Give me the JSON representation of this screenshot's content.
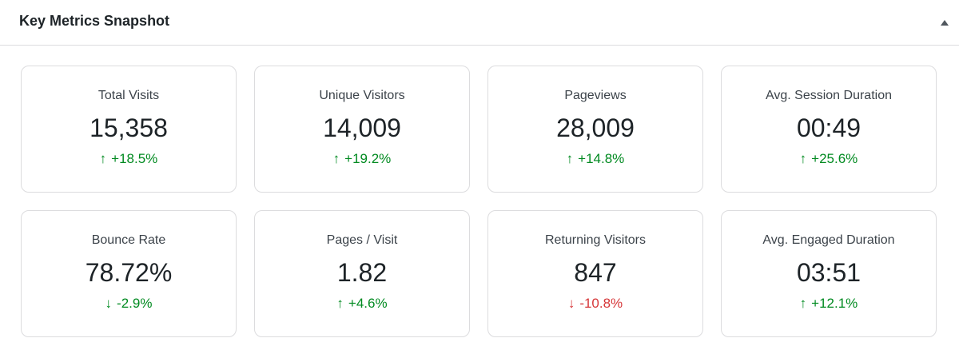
{
  "header": {
    "title": "Key Metrics Snapshot"
  },
  "metrics": [
    {
      "label": "Total Visits",
      "value": "15,358",
      "arrow": "↑",
      "change": "+18.5%",
      "color": "#008a20"
    },
    {
      "label": "Unique Visitors",
      "value": "14,009",
      "arrow": "↑",
      "change": "+19.2%",
      "color": "#008a20"
    },
    {
      "label": "Pageviews",
      "value": "28,009",
      "arrow": "↑",
      "change": "+14.8%",
      "color": "#008a20"
    },
    {
      "label": "Avg. Session Duration",
      "value": "00:49",
      "arrow": "↑",
      "change": "+25.6%",
      "color": "#008a20"
    },
    {
      "label": "Bounce Rate",
      "value": "78.72%",
      "arrow": "↓",
      "change": "-2.9%",
      "color": "#008a20"
    },
    {
      "label": "Pages / Visit",
      "value": "1.82",
      "arrow": "↑",
      "change": "+4.6%",
      "color": "#008a20"
    },
    {
      "label": "Returning Visitors",
      "value": "847",
      "arrow": "↓",
      "change": "-10.8%",
      "color": "#d63638"
    },
    {
      "label": "Avg. Engaged Duration",
      "value": "03:51",
      "arrow": "↑",
      "change": "+12.1%",
      "color": "#008a20"
    }
  ]
}
